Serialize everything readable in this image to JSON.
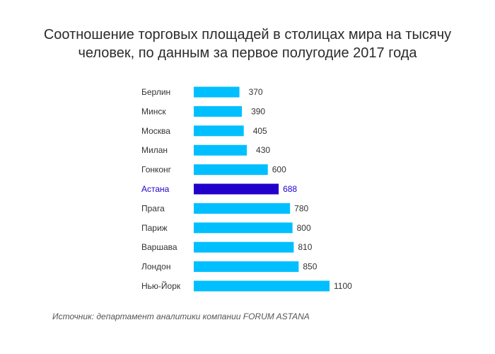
{
  "title_lines": [
    "Соотношение торговых площадей в столицах мира на тысячу",
    "человек, по данным за первое полугодие 2017 года"
  ],
  "source": "Источник: департамент аналитики компании FORUM ASTANA",
  "colors": {
    "bar": "#00bfff",
    "highlight": "#2200cc",
    "label": "#333333"
  },
  "chart_data": {
    "type": "bar",
    "orientation": "horizontal",
    "title": "Соотношение торговых площадей в столицах мира на тысячу человек, по данным за первое полугодие 2017 года",
    "categories": [
      "Берлин",
      "Минск",
      "Москва",
      "Милан",
      "Гонконг",
      "Астана",
      "Прага",
      "Париж",
      "Варшава",
      "Лондон",
      "Нью-Йорк"
    ],
    "values": [
      370,
      390,
      405,
      430,
      600,
      688,
      780,
      800,
      810,
      850,
      1100
    ],
    "highlighted_category": "Астана",
    "xlim": [
      0,
      1100
    ],
    "grid": false,
    "legend": "none"
  }
}
